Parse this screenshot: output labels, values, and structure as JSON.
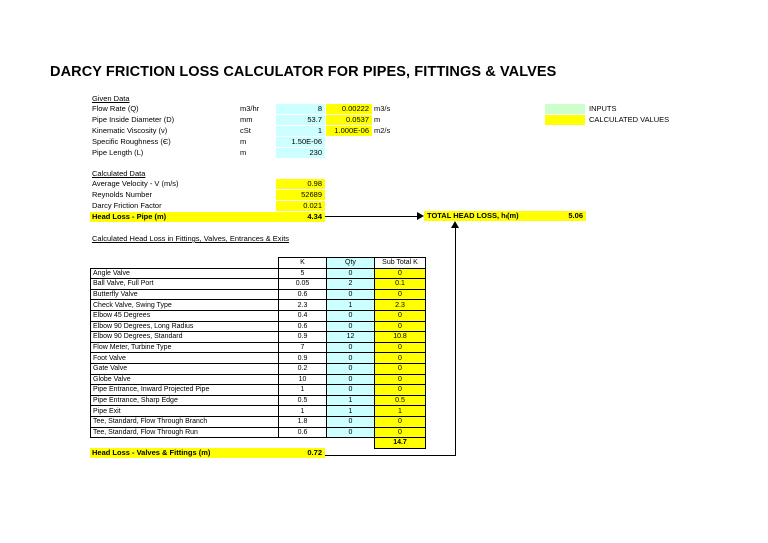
{
  "title": "DARCY FRICTION LOSS CALCULATOR FOR PIPES, FITTINGS & VALVES",
  "given": {
    "heading": "Given Data",
    "rows": [
      {
        "label": "Flow Rate (Q)",
        "unit": "m3/hr",
        "input": "8",
        "calc": "0.00222",
        "calc_unit": "m3/s"
      },
      {
        "label": "Pipe Inside Diameter (D)",
        "unit": "mm",
        "input": "53.7",
        "calc": "0.0537",
        "calc_unit": "m"
      },
      {
        "label": "Kinematic Viscosity (ν)",
        "unit": "cSt",
        "input": "1",
        "calc": "1.000E-06",
        "calc_unit": "m2/s"
      },
      {
        "label": "Specific Roughness (Є)",
        "unit": "m",
        "input": "1.50E-06",
        "calc": "",
        "calc_unit": ""
      },
      {
        "label": "Pipe Length (L)",
        "unit": "m",
        "input": "230",
        "calc": "",
        "calc_unit": ""
      }
    ]
  },
  "legend": {
    "inputs": "INPUTS",
    "calculated": "CALCULATED VALUES"
  },
  "calculated": {
    "heading": "Calculated Data",
    "rows": [
      {
        "label": "Average Velocity - V (m/s)",
        "value": "0.98"
      },
      {
        "label": "Reynolds Number",
        "value": "52689"
      },
      {
        "label": "Darcy Friction Factor",
        "value": "0.021"
      }
    ],
    "head_loss_pipe_label": "Head Loss - Pipe (m)",
    "head_loss_pipe_value": "4.34"
  },
  "total": {
    "label": "TOTAL HEAD LOSS, hₗ(m)",
    "value": "5.06"
  },
  "fittings": {
    "heading": "Calculated Head Loss in Fittings, Valves, Entrances & Exits",
    "col_k": "K",
    "col_qty": "Qty",
    "col_sub": "Sub Total K",
    "rows": [
      {
        "name": "Angle Valve",
        "k": "5",
        "qty": "0",
        "sub": "0"
      },
      {
        "name": "Ball Valve, Full Port",
        "k": "0.05",
        "qty": "2",
        "sub": "0.1"
      },
      {
        "name": "Butterfly Valve",
        "k": "0.6",
        "qty": "0",
        "sub": "0"
      },
      {
        "name": "Check Valve, Swing Type",
        "k": "2.3",
        "qty": "1",
        "sub": "2.3"
      },
      {
        "name": "Elbow 45 Degrees",
        "k": "0.4",
        "qty": "0",
        "sub": "0"
      },
      {
        "name": "Elbow 90 Degrees, Long Radius",
        "k": "0.6",
        "qty": "0",
        "sub": "0"
      },
      {
        "name": "Elbow 90 Degrees, Standard",
        "k": "0.9",
        "qty": "12",
        "sub": "10.8"
      },
      {
        "name": "Flow Meter, Turbine Type",
        "k": "7",
        "qty": "0",
        "sub": "0"
      },
      {
        "name": "Foot Valve",
        "k": "0.9",
        "qty": "0",
        "sub": "0"
      },
      {
        "name": "Gate Valve",
        "k": "0.2",
        "qty": "0",
        "sub": "0"
      },
      {
        "name": "Globe Valve",
        "k": "10",
        "qty": "0",
        "sub": "0"
      },
      {
        "name": "Pipe Entrance, Inward Projected Pipe",
        "k": "1",
        "qty": "0",
        "sub": "0"
      },
      {
        "name": "Pipe Entrance, Sharp Edge",
        "k": "0.5",
        "qty": "1",
        "sub": "0.5"
      },
      {
        "name": "Pipe Exit",
        "k": "1",
        "qty": "1",
        "sub": "1"
      },
      {
        "name": "Tee, Standard, Flow Through Branch",
        "k": "1.8",
        "qty": "0",
        "sub": "0"
      },
      {
        "name": "Tee, Standard, Flow Through Run",
        "k": "0.6",
        "qty": "0",
        "sub": "0"
      }
    ],
    "total_k": "14.7",
    "head_loss_label": "Head Loss - Valves & Fittings (m)",
    "head_loss_value": "0.72"
  },
  "colors": {
    "input": "#ccffff",
    "calculated": "#ffff00",
    "legend_input": "#ccffcc"
  }
}
